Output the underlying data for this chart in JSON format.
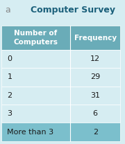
{
  "title": "Computer Survey",
  "col1_header": "Number of\nComputers",
  "col2_header": "Frequency",
  "rows": [
    [
      "0",
      "12"
    ],
    [
      "1",
      "29"
    ],
    [
      "2",
      "31"
    ],
    [
      "3",
      "6"
    ],
    [
      "More than 3",
      "2"
    ]
  ],
  "header_bg": "#6aacb8",
  "row_bg_dark": "#7bbfcc",
  "row_bg_light": "#d6edf2",
  "title_color": "#1a5f7a",
  "header_text_color": "#ffffff",
  "title_fontsize": 9,
  "header_fontsize": 7.5,
  "cell_fontsize": 8,
  "title_prefix": "a",
  "title_prefix_color": "#888888"
}
